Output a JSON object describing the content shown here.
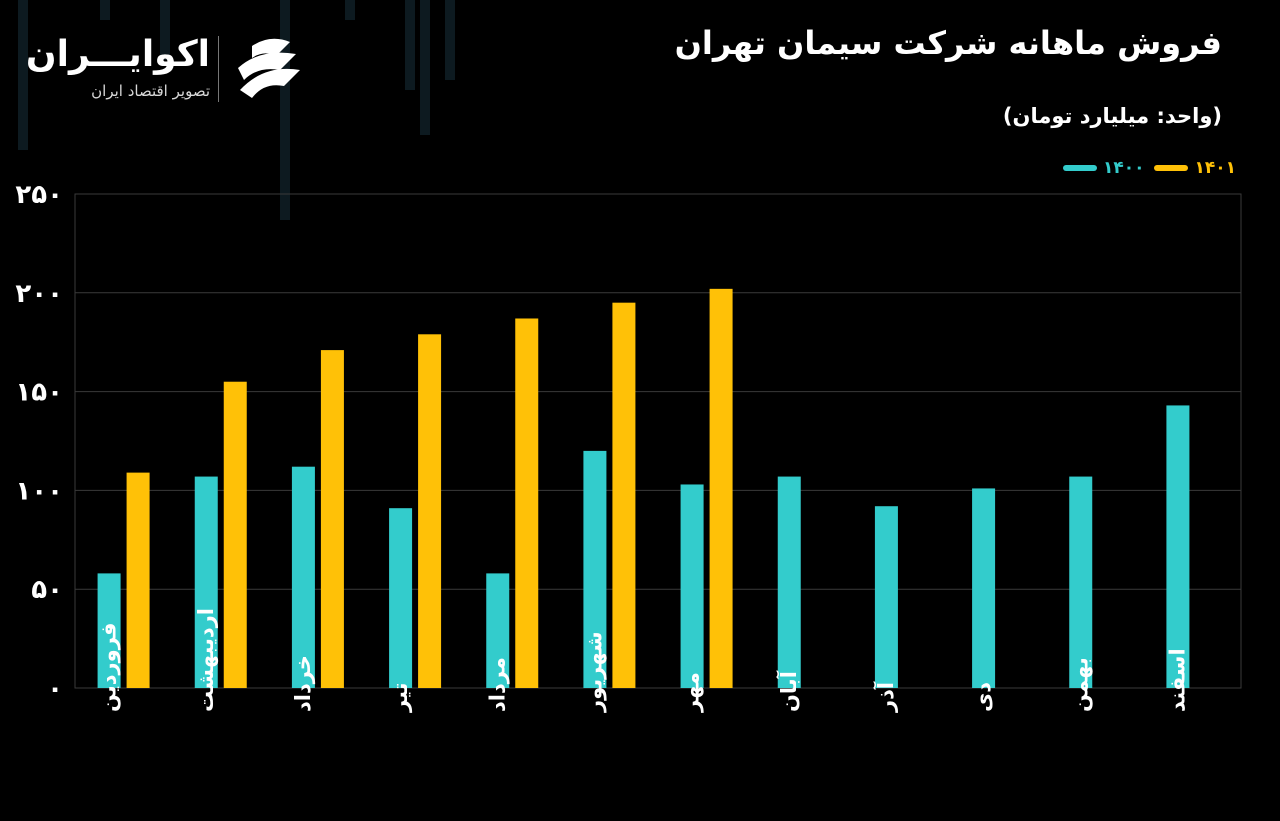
{
  "header": {
    "title": "فروش ماهانه شرکت سیمان تهران",
    "unit": "(واحد: میلیارد تومان)"
  },
  "brand": {
    "name": "اکوایـــران",
    "tagline": "تصویر اقتصاد ایران"
  },
  "colors": {
    "background": "#000000",
    "series_1400": "#33cccc",
    "series_1401": "#ffc107",
    "grid": "#3a3a3a",
    "text": "#ffffff"
  },
  "legend": [
    {
      "label": "۱۴۰۱",
      "color": "#ffc107"
    },
    {
      "label": "۱۴۰۰",
      "color": "#33cccc"
    }
  ],
  "chart_data": {
    "type": "bar",
    "categories": [
      "فروردین",
      "اردیبهشت",
      "خرداد",
      "تیر",
      "مرداد",
      "شهریور",
      "مهر",
      "آبان",
      "آذر",
      "دی",
      "بهمن",
      "اسفند"
    ],
    "series": [
      {
        "name": "۱۴۰۰",
        "color": "#33cccc",
        "values": [
          58,
          107,
          112,
          91,
          58,
          120,
          103,
          107,
          92,
          101,
          107,
          143
        ]
      },
      {
        "name": "۱۴۰۱",
        "color": "#ffc107",
        "values": [
          109,
          155,
          171,
          179,
          187,
          195,
          202,
          null,
          null,
          null,
          null,
          null
        ]
      }
    ],
    "ylim": [
      0,
      250
    ],
    "yticks": [
      "۰",
      "۵۰",
      "۱۰۰",
      "۱۵۰",
      "۲۰۰",
      "۲۵۰"
    ],
    "ytick_values": [
      0,
      50,
      100,
      150,
      200,
      250
    ],
    "grid": true,
    "legend_position": "top-right"
  }
}
